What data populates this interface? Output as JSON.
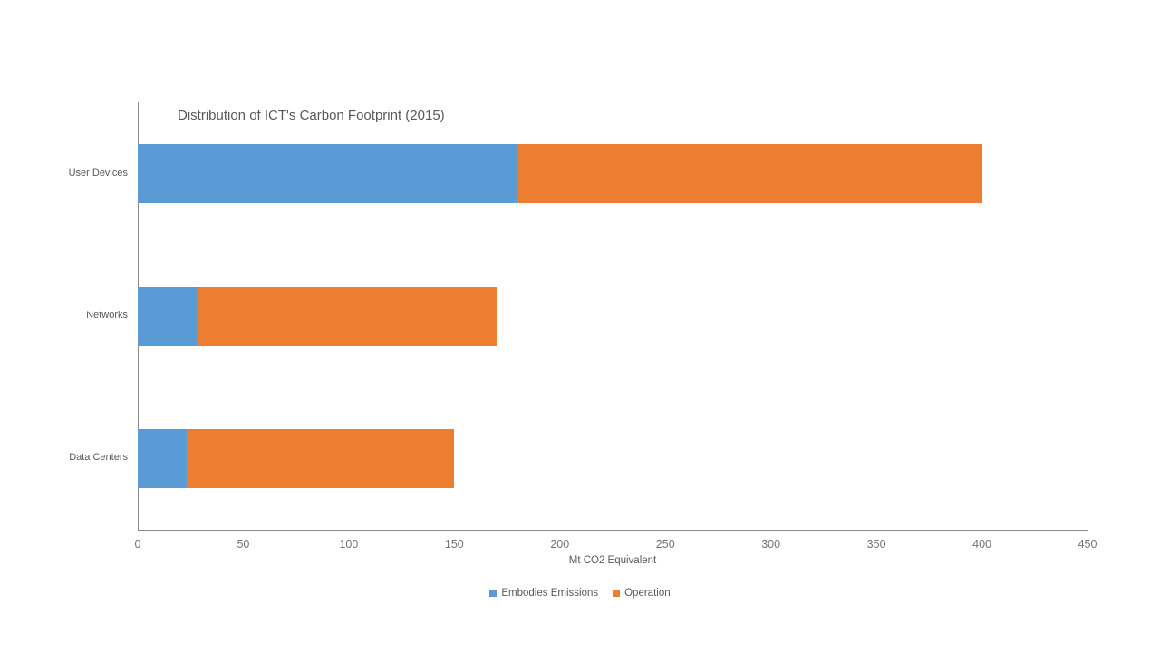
{
  "chart_data": {
    "type": "bar",
    "orientation": "horizontal",
    "stacked": true,
    "title": "Distribution of ICT's Carbon Footprint (2015)",
    "categories": [
      "User Devices",
      "Networks",
      "Data Centers"
    ],
    "series": [
      {
        "name": "Embodies Emissions",
        "color": "#5B9BD5",
        "values": [
          180,
          28,
          23
        ]
      },
      {
        "name": "Operation",
        "color": "#ED7D31",
        "values": [
          220,
          142,
          127
        ]
      }
    ],
    "xlabel": "Mt CO2 Equivalent",
    "xlim": [
      0,
      450
    ],
    "xticks": [
      0,
      50,
      100,
      150,
      200,
      250,
      300,
      350,
      400,
      450
    ],
    "grid": false,
    "legend_position": "bottom",
    "axis_color": "#8a8a8a",
    "text_color": "#595959"
  }
}
